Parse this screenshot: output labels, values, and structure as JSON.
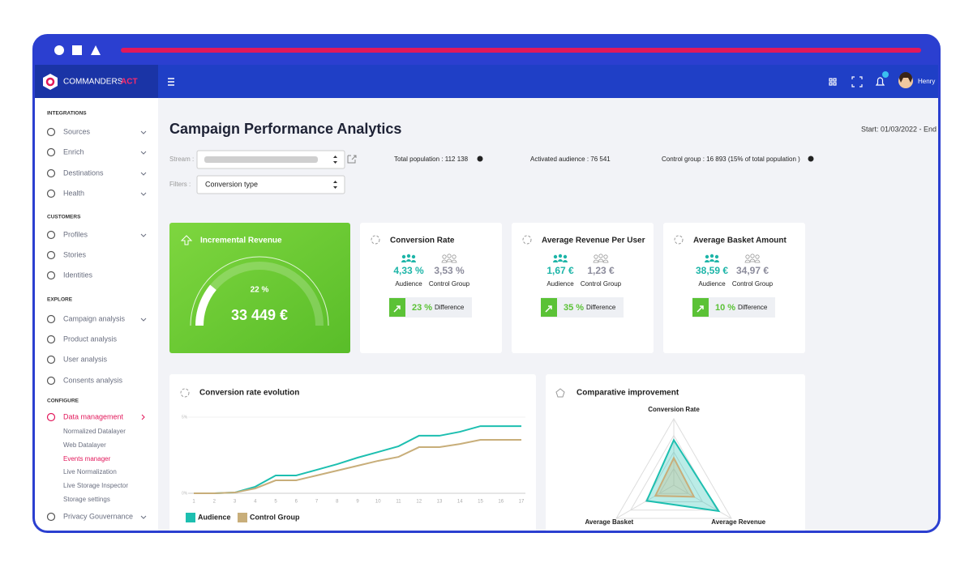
{
  "header": {
    "brand": "COMMANDERS",
    "brand_accent": "ACT",
    "user": "Henry"
  },
  "sidebar": {
    "sections": [
      {
        "title": "INTEGRATIONS",
        "items": [
          "Sources",
          "Enrich",
          "Destinations",
          "Health"
        ]
      },
      {
        "title": "CUSTOMERS",
        "items": [
          "Profiles",
          "Stories",
          "Identities"
        ]
      },
      {
        "title": "EXPLORE",
        "items": [
          "Campaign analysis",
          "Product analysis",
          "User analysis",
          "Consents analysis"
        ]
      },
      {
        "title": "CONFIGURE",
        "items": [
          "Data management",
          "Privacy Gouvernance"
        ],
        "subitems": [
          "Normalized Datalayer",
          "Web Datalayer",
          "Events manager",
          "Live Normalization",
          "Live Storage Inspector",
          "Storage settings"
        ]
      }
    ]
  },
  "page": {
    "title": "Campaign Performance Analytics",
    "date_range": "Start: 01/03/2022 - End",
    "stream_label": "Stream :",
    "filters_label": "Filters :",
    "filter_value": "Conversion type",
    "stats": [
      "Total population : 112 138",
      "Activated audience : 76 541",
      "Control group : 16 893 (15% of total population )"
    ]
  },
  "kpis": {
    "incremental_value": "33 449 €",
    "audience_label": "Audience",
    "control_label": "Control Group",
    "difference_label": "Difference",
    "cards": [
      {
        "title": "Conversion Rate",
        "audience": "4,33 %",
        "control": "3,53 %",
        "difference": "23 %"
      },
      {
        "title": "Average Revenue Per User",
        "audience": "1,67 €",
        "control": "1,23 €",
        "difference": "35 %"
      },
      {
        "title": "Average Basket Amount",
        "audience": "38,59 €",
        "control": "34,97 €",
        "difference": "10 %"
      }
    ]
  },
  "chart_data": [
    {
      "type": "line",
      "title": "Conversion rate evolution",
      "x": [
        1,
        2,
        3,
        4,
        5,
        6,
        7,
        8,
        9,
        10,
        11,
        12,
        13,
        14,
        15,
        16,
        17
      ],
      "xlim": [
        1,
        17
      ],
      "xticks": [
        1,
        2,
        3,
        4,
        5,
        6,
        7,
        8,
        9,
        10,
        11,
        12,
        13,
        14,
        15,
        16,
        17
      ],
      "ylim": [
        0,
        5
      ],
      "yticks": [
        {
          "value": 0,
          "label": "0%"
        },
        {
          "value": 5,
          "label": "5%"
        }
      ],
      "series": [
        {
          "name": "Audience",
          "color": "#1dbfb0",
          "values": [
            0,
            0,
            0.05,
            0.43,
            1.17,
            1.17,
            1.54,
            1.91,
            2.34,
            2.71,
            3.09,
            3.78,
            3.78,
            4.04,
            4.41,
            4.41,
            4.41
          ]
        },
        {
          "name": "Control Group",
          "color": "#c8ae7a",
          "values": [
            0,
            0,
            0.05,
            0.32,
            0.85,
            0.85,
            1.17,
            1.49,
            1.81,
            2.13,
            2.39,
            3.03,
            3.03,
            3.24,
            3.51,
            3.51,
            3.51
          ]
        }
      ]
    },
    {
      "type": "radar",
      "title": "Comparative improvement",
      "categories": [
        "Conversion Rate",
        "Average Revenue",
        "Average Basket"
      ],
      "rlim": [
        0,
        100
      ],
      "rticks": [
        25,
        50,
        75,
        100
      ],
      "series": [
        {
          "color": "#1dbfb0",
          "values": [
            68,
            78,
            47
          ]
        },
        {
          "color": "#c8ae7a",
          "values": [
            41,
            35,
            32
          ]
        }
      ]
    },
    {
      "type": "gauge",
      "title": "Incremental Revenue",
      "ylim": [
        0,
        100
      ],
      "values": [
        22
      ],
      "value_labels": [
        "22 %"
      ]
    }
  ]
}
